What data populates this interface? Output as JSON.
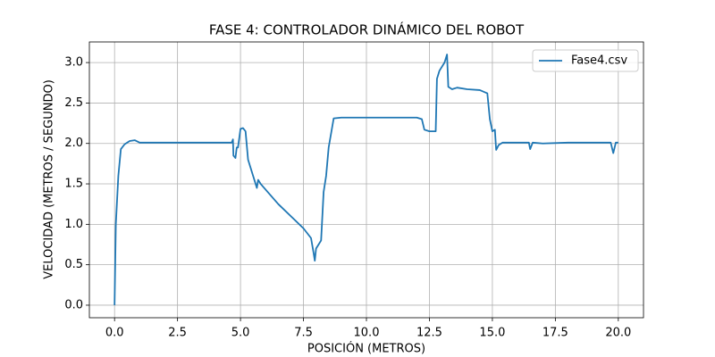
{
  "chart_data": {
    "type": "line",
    "title": "FASE 4: CONTROLADOR DINÁMICO DEL ROBOT",
    "x_label": "POSICIÓN (METROS)",
    "y_label": "VELOCIDAD (METROS / SEGUNDO)",
    "xlim": [
      -1,
      21
    ],
    "ylim": [
      -0.155,
      3.255
    ],
    "xticks": [
      {
        "value": 0,
        "label": "0.0"
      },
      2.5,
      {
        "value": 5,
        "label": "5.0"
      },
      7.5,
      {
        "value": 10,
        "label": "10.0"
      },
      12.5,
      {
        "value": 15,
        "label": "15.0"
      },
      17.5,
      {
        "value": 20,
        "label": "20.0"
      }
    ],
    "yticks": [
      {
        "value": 0,
        "label": "0.0"
      },
      0.5,
      {
        "value": 1,
        "label": "1.0"
      },
      1.5,
      {
        "value": 2,
        "label": "2.0"
      },
      2.5,
      {
        "value": 3,
        "label": "3.0"
      }
    ],
    "grid": true,
    "legend": "upper right",
    "x": [
      0,
      0.05,
      0.15,
      0.25,
      0.4,
      0.6,
      0.8,
      1.0,
      2,
      3,
      4,
      4.65,
      4.7,
      4.72,
      4.8,
      4.85,
      4.9,
      5.0,
      5.1,
      5.2,
      5.3,
      5.5,
      5.65,
      5.7,
      5.8,
      6.5,
      7.0,
      7.5,
      7.8,
      7.9,
      7.95,
      8.0,
      8.1,
      8.2,
      8.3,
      8.4,
      8.5,
      8.7,
      9,
      10,
      11,
      12,
      12.2,
      12.3,
      12.5,
      12.75,
      12.8,
      12.9,
      13.1,
      13.2,
      13.25,
      13.4,
      13.6,
      14,
      14.5,
      14.8,
      14.9,
      15.0,
      15.1,
      15.15,
      15.25,
      15.4,
      16,
      16.45,
      16.5,
      16.6,
      17,
      18,
      19,
      19.7,
      19.8,
      19.9,
      20
    ],
    "series": [
      {
        "name": "Fase4.csv",
        "color": "#1f77b4",
        "values": [
          0,
          1.0,
          1.6,
          1.93,
          1.99,
          2.03,
          2.04,
          2.01,
          2.01,
          2.01,
          2.01,
          2.01,
          2.05,
          1.85,
          1.82,
          1.95,
          1.95,
          2.18,
          2.19,
          2.15,
          1.8,
          1.6,
          1.45,
          1.55,
          1.5,
          1.25,
          1.1,
          0.95,
          0.83,
          0.65,
          0.55,
          0.7,
          0.75,
          0.8,
          1.4,
          1.6,
          1.95,
          2.31,
          2.32,
          2.32,
          2.32,
          2.32,
          2.3,
          2.17,
          2.15,
          2.15,
          2.8,
          2.9,
          3.0,
          3.1,
          2.7,
          2.67,
          2.69,
          2.67,
          2.66,
          2.62,
          2.3,
          2.15,
          2.17,
          1.92,
          1.98,
          2.01,
          2.01,
          2.01,
          1.93,
          2.01,
          2.0,
          2.01,
          2.01,
          2.01,
          1.88,
          2.01,
          2.01
        ]
      }
    ]
  }
}
